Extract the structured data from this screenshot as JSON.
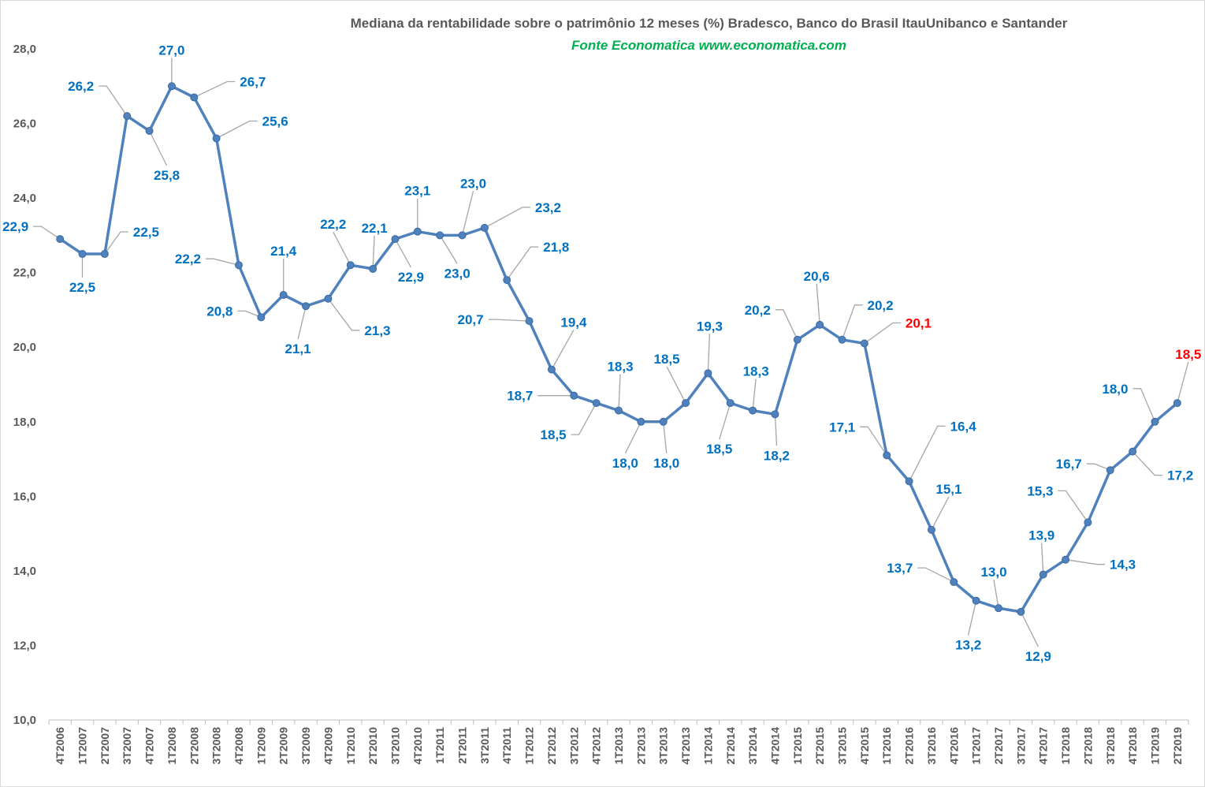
{
  "chart_data": {
    "type": "line",
    "title": "Mediana da rentabilidade sobre o patrimônio 12 meses (%) Bradesco, Banco do Brasil ItauUnibanco e Santander",
    "subtitle": "Fonte Economatica www.economatica.com",
    "ylim": [
      10,
      28
    ],
    "yticks": [
      "10,0",
      "12,0",
      "14,0",
      "16,0",
      "18,0",
      "20,0",
      "22,0",
      "24,0",
      "26,0",
      "28,0"
    ],
    "ytick_values": [
      10,
      12,
      14,
      16,
      18,
      20,
      22,
      24,
      26,
      28
    ],
    "grid": false,
    "legend": "none",
    "line_color": "#4f81bd",
    "label_color": "#0070c0",
    "highlight_color": "#ff0000",
    "leader_color": "#a6a6a6",
    "categories": [
      "4T2006",
      "1T2007",
      "2T2007",
      "3T2007",
      "4T2007",
      "1T2008",
      "2T2008",
      "3T2008",
      "4T2008",
      "1T2009",
      "2T2009",
      "3T2009",
      "4T2009",
      "1T2010",
      "2T2010",
      "3T2010",
      "4T2010",
      "1T2011",
      "2T2011",
      "3T2011",
      "4T2011",
      "1T2012",
      "2T2012",
      "3T2012",
      "4T2012",
      "1T2013",
      "2T2013",
      "3T2013",
      "4T2013",
      "1T2014",
      "2T2014",
      "3T2014",
      "4T2014",
      "1T2015",
      "2T2015",
      "3T2015",
      "4T2015",
      "1T2016",
      "2T2016",
      "3T2016",
      "4T2016",
      "1T2017",
      "2T2017",
      "3T2017",
      "4T2017",
      "1T2018",
      "2T2018",
      "3T2018",
      "4T2018",
      "1T2019",
      "2T2019"
    ],
    "values": [
      22.9,
      22.5,
      22.5,
      26.2,
      25.8,
      27.0,
      26.7,
      25.6,
      22.2,
      20.8,
      21.4,
      21.1,
      21.3,
      22.2,
      22.1,
      22.9,
      23.1,
      23.0,
      23.0,
      23.2,
      21.8,
      20.7,
      19.4,
      18.7,
      18.5,
      18.3,
      18.0,
      18.0,
      18.5,
      19.3,
      18.5,
      18.3,
      18.2,
      20.2,
      20.6,
      20.2,
      20.1,
      17.1,
      16.4,
      15.1,
      13.7,
      13.2,
      13.0,
      12.9,
      13.9,
      14.3,
      15.3,
      16.7,
      17.2,
      18.0,
      18.5
    ],
    "labels": [
      "22,9",
      "22,5",
      "22,5",
      "26,2",
      "25,8",
      "27,0",
      "26,7",
      "25,6",
      "22,2",
      "20,8",
      "21,4",
      "21,1",
      "21,3",
      "22,2",
      "22,1",
      "22,9",
      "23,1",
      "23,0",
      "23,0",
      "23,2",
      "21,8",
      "20,7",
      "19,4",
      "18,7",
      "18,5",
      "18,3",
      "18,0",
      "18,0",
      "18,5",
      "19,3",
      "18,5",
      "18,3",
      "18,2",
      "20,2",
      "20,6",
      "20,2",
      "20,1",
      "17,1",
      "16,4",
      "15,1",
      "13,7",
      "13,2",
      "13,0",
      "12,9",
      "13,9",
      "14,3",
      "15,3",
      "16,7",
      "17,2",
      "18,0",
      "18,5"
    ],
    "highlighted": [
      "4T2015",
      "2T2019"
    ]
  }
}
